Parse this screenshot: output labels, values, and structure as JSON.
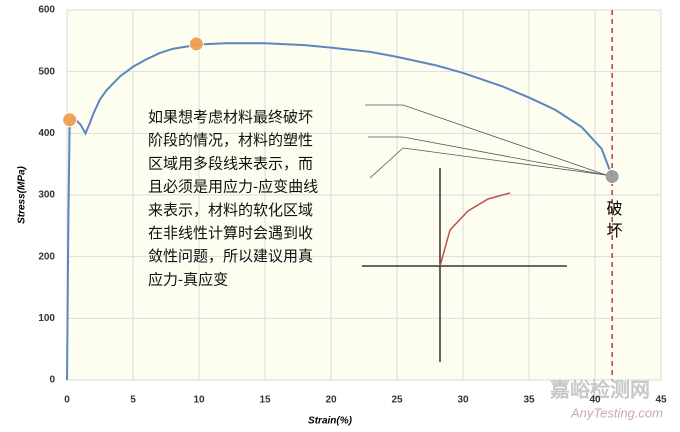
{
  "chart_data": {
    "type": "line",
    "xlabel": "Strain(%)",
    "ylabel": "Stress(MPa)",
    "xlim": [
      0,
      45
    ],
    "ylim": [
      0,
      600
    ],
    "xticks": [
      0,
      5,
      10,
      15,
      20,
      25,
      30,
      35,
      40,
      45
    ],
    "yticks": [
      0,
      100,
      200,
      300,
      400,
      500,
      600
    ],
    "grid": true,
    "x": [
      0,
      0.1,
      0.2,
      0.5,
      1.0,
      1.4,
      1.7,
      2.0,
      2.5,
      3,
      4,
      5,
      6,
      7,
      8,
      10,
      12,
      15,
      18,
      20,
      23,
      25,
      28,
      30,
      33,
      35,
      37,
      39,
      40.5,
      41.3
    ],
    "series": [
      {
        "name": "Stress",
        "color": "#5b86c0",
        "values": [
          0,
          250,
          420,
          425,
          415,
          400,
          415,
          432,
          455,
          470,
          492,
          508,
          520,
          530,
          537,
          544,
          546,
          546,
          543,
          539,
          532,
          524,
          510,
          498,
          476,
          458,
          438,
          410,
          375,
          330
        ]
      }
    ],
    "markers": [
      {
        "x": 0.2,
        "y": 422,
        "color": "#f0a050"
      },
      {
        "x": 9.8,
        "y": 545,
        "color": "#f0a050"
      },
      {
        "x": 41.3,
        "y": 330,
        "color": "#9a9a9a"
      }
    ],
    "fracture_strain": 41.3,
    "fracture_label": "破坏",
    "annotation": [
      "如果想考虑材料最终破坏",
      "阶段的情况，材料的塑性",
      "区域用多段线来表示，而",
      "且必须是用应力-应变曲线",
      "来表示，材料的软化区域",
      "在非线性计算时会遇到收",
      "敛性问题，所以建议用真",
      "应力-真应变"
    ],
    "watermark": [
      "嘉峪检测网",
      "AnyTesting.com"
    ]
  }
}
